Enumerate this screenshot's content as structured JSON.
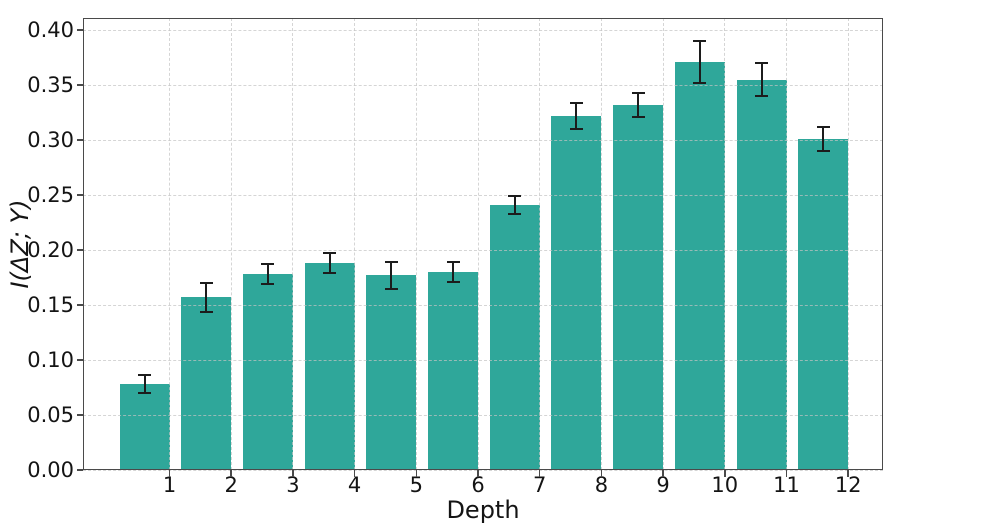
{
  "chart_data": {
    "type": "bar",
    "title": "",
    "xlabel": "Depth",
    "ylabel": "I(ΔZ; Y)",
    "categories": [
      "1",
      "2",
      "3",
      "4",
      "5",
      "6",
      "7",
      "8",
      "9",
      "10",
      "11",
      "12"
    ],
    "values": [
      0.078,
      0.157,
      0.178,
      0.188,
      0.177,
      0.18,
      0.241,
      0.322,
      0.332,
      0.371,
      0.355,
      0.301
    ],
    "errors": [
      0.008,
      0.013,
      0.009,
      0.009,
      0.012,
      0.009,
      0.008,
      0.012,
      0.011,
      0.019,
      0.015,
      0.011
    ],
    "ylim": [
      0,
      0.411
    ],
    "ytick_labels": [
      "0.00",
      "0.05",
      "0.10",
      "0.15",
      "0.20",
      "0.25",
      "0.30",
      "0.35",
      "0.40"
    ],
    "grid": true,
    "grid_style": "dashed",
    "legend": "none",
    "bar_color": "#2FA79A",
    "error_color": "#1C1C1C",
    "axis_color": "#4A4A4A",
    "text_color": "#141414"
  }
}
